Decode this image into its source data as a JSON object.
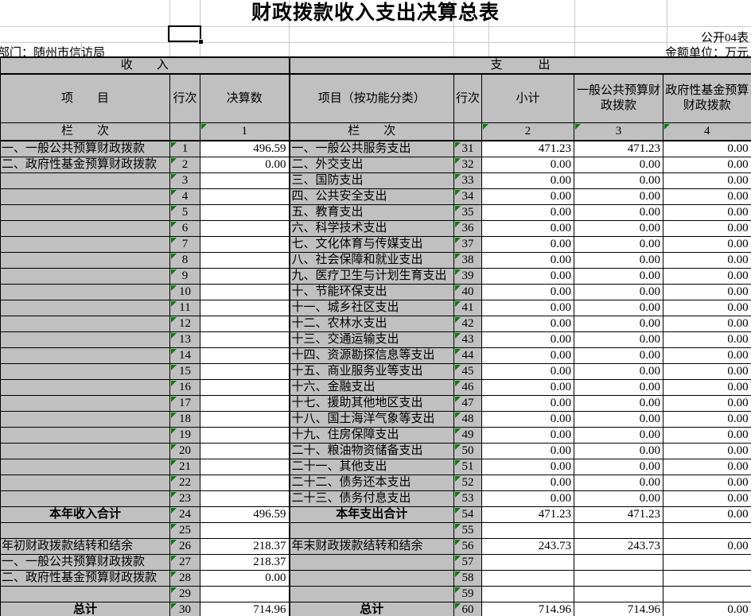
{
  "colors": {
    "cell_gray": "#c0c0c0",
    "faint_gridline": "#c9c9c9",
    "border": "#000000",
    "error_indicator_green": "#008000"
  },
  "title": "财政拨款收入支出决算总表",
  "meta": {
    "form_code": "公开04表",
    "department": "部门：随州市信访局",
    "unit": "金额单位：万元"
  },
  "band": {
    "income": "收　　入",
    "expenditure": "支　　　出"
  },
  "columns": {
    "income_item": "项　　目",
    "income_row_no": "行次",
    "income_amount": "决算数",
    "expense_item": "项目（按功能分类）",
    "expense_row_no": "行次",
    "expense_subtotal": "小计",
    "expense_general_budget": "一般公共预算财政拨款",
    "expense_gov_fund": "政府性基金预算财政拨款"
  },
  "index_row": {
    "income_label": "栏　　次",
    "income_col": "1",
    "expense_label": "栏　　次",
    "subtotal_col": "2",
    "general_col": "3",
    "fund_col": "4"
  },
  "rows": [
    {
      "i": "一、一般公共预算财政拨款",
      "inum": "1",
      "ival": "496.59",
      "e": "一、一般公共服务支出",
      "enum": "31",
      "sub": "471.23",
      "gen": "471.23",
      "fund": "0.00"
    },
    {
      "i": "二、政府性基金预算财政拨款",
      "inum": "2",
      "ival": "0.00",
      "e": "二、外交支出",
      "enum": "32",
      "sub": "0.00",
      "gen": "0.00",
      "fund": "0.00"
    },
    {
      "i": "",
      "inum": "3",
      "ival": "",
      "e": "三、国防支出",
      "enum": "33",
      "sub": "0.00",
      "gen": "0.00",
      "fund": "0.00"
    },
    {
      "i": "",
      "inum": "4",
      "ival": "",
      "e": "四、公共安全支出",
      "enum": "34",
      "sub": "0.00",
      "gen": "0.00",
      "fund": "0.00"
    },
    {
      "i": "",
      "inum": "5",
      "ival": "",
      "e": "五、教育支出",
      "enum": "35",
      "sub": "0.00",
      "gen": "0.00",
      "fund": "0.00"
    },
    {
      "i": "",
      "inum": "6",
      "ival": "",
      "e": "六、科学技术支出",
      "enum": "36",
      "sub": "0.00",
      "gen": "0.00",
      "fund": "0.00"
    },
    {
      "i": "",
      "inum": "7",
      "ival": "",
      "e": "七、文化体育与传媒支出",
      "enum": "37",
      "sub": "0.00",
      "gen": "0.00",
      "fund": "0.00"
    },
    {
      "i": "",
      "inum": "8",
      "ival": "",
      "e": "八、社会保障和就业支出",
      "enum": "38",
      "sub": "0.00",
      "gen": "0.00",
      "fund": "0.00"
    },
    {
      "i": "",
      "inum": "9",
      "ival": "",
      "e": "九、医疗卫生与计划生育支出",
      "enum": "39",
      "sub": "0.00",
      "gen": "0.00",
      "fund": "0.00"
    },
    {
      "i": "",
      "inum": "10",
      "ival": "",
      "e": "十、节能环保支出",
      "enum": "40",
      "sub": "0.00",
      "gen": "0.00",
      "fund": "0.00"
    },
    {
      "i": "",
      "inum": "11",
      "ival": "",
      "e": "十一、城乡社区支出",
      "enum": "41",
      "sub": "0.00",
      "gen": "0.00",
      "fund": "0.00"
    },
    {
      "i": "",
      "inum": "12",
      "ival": "",
      "e": "十二、农林水支出",
      "enum": "42",
      "sub": "0.00",
      "gen": "0.00",
      "fund": "0.00"
    },
    {
      "i": "",
      "inum": "13",
      "ival": "",
      "e": "十三、交通运输支出",
      "enum": "43",
      "sub": "0.00",
      "gen": "0.00",
      "fund": "0.00"
    },
    {
      "i": "",
      "inum": "14",
      "ival": "",
      "e": "十四、资源勘探信息等支出",
      "enum": "44",
      "sub": "0.00",
      "gen": "0.00",
      "fund": "0.00"
    },
    {
      "i": "",
      "inum": "15",
      "ival": "",
      "e": "十五、商业服务业等支出",
      "enum": "45",
      "sub": "0.00",
      "gen": "0.00",
      "fund": "0.00"
    },
    {
      "i": "",
      "inum": "16",
      "ival": "",
      "e": "十六、金融支出",
      "enum": "46",
      "sub": "0.00",
      "gen": "0.00",
      "fund": "0.00"
    },
    {
      "i": "",
      "inum": "17",
      "ival": "",
      "e": "十七、援助其他地区支出",
      "enum": "47",
      "sub": "0.00",
      "gen": "0.00",
      "fund": "0.00"
    },
    {
      "i": "",
      "inum": "18",
      "ival": "",
      "e": "十八、国土海洋气象等支出",
      "enum": "48",
      "sub": "0.00",
      "gen": "0.00",
      "fund": "0.00"
    },
    {
      "i": "",
      "inum": "19",
      "ival": "",
      "e": "十九、住房保障支出",
      "enum": "49",
      "sub": "0.00",
      "gen": "0.00",
      "fund": "0.00"
    },
    {
      "i": "",
      "inum": "20",
      "ival": "",
      "e": "二十、粮油物资储备支出",
      "enum": "50",
      "sub": "0.00",
      "gen": "0.00",
      "fund": "0.00"
    },
    {
      "i": "",
      "inum": "21",
      "ival": "",
      "e": "二十一、其他支出",
      "enum": "51",
      "sub": "0.00",
      "gen": "0.00",
      "fund": "0.00"
    },
    {
      "i": "",
      "inum": "22",
      "ival": "",
      "e": "二十二、债务还本支出",
      "enum": "52",
      "sub": "0.00",
      "gen": "0.00",
      "fund": "0.00"
    },
    {
      "i": "",
      "inum": "23",
      "ival": "",
      "e": "二十三、债务付息支出",
      "enum": "53",
      "sub": "0.00",
      "gen": "0.00",
      "fund": "0.00"
    },
    {
      "i": "本年收入合计",
      "inum": "24",
      "ival": "496.59",
      "e": "本年支出合计",
      "enum": "54",
      "sub": "471.23",
      "gen": "471.23",
      "fund": "0.00",
      "total": true
    },
    {
      "i": "",
      "inum": "25",
      "ival": "",
      "e": "",
      "enum": "55",
      "sub": "",
      "gen": "",
      "fund": ""
    },
    {
      "i": "年初财政拨款结转和结余",
      "inum": "26",
      "ival": "218.37",
      "e": "年末财政拨款结转和结余",
      "enum": "56",
      "sub": "243.73",
      "gen": "243.73",
      "fund": "0.00"
    },
    {
      "i": "一、一般公共预算财政拨款",
      "inum": "27",
      "ival": "218.37",
      "e": "",
      "enum": "57",
      "sub": "",
      "gen": "",
      "fund": ""
    },
    {
      "i": "二、政府性基金预算财政拨款",
      "inum": "28",
      "ival": "0.00",
      "e": "",
      "enum": "58",
      "sub": "",
      "gen": "",
      "fund": ""
    },
    {
      "i": "",
      "inum": "29",
      "ival": "",
      "e": "",
      "enum": "59",
      "sub": "",
      "gen": "",
      "fund": ""
    },
    {
      "i": "总计",
      "inum": "30",
      "ival": "714.96",
      "e": "总计",
      "enum": "60",
      "sub": "714.96",
      "gen": "714.96",
      "fund": "0.00",
      "total": true
    }
  ]
}
